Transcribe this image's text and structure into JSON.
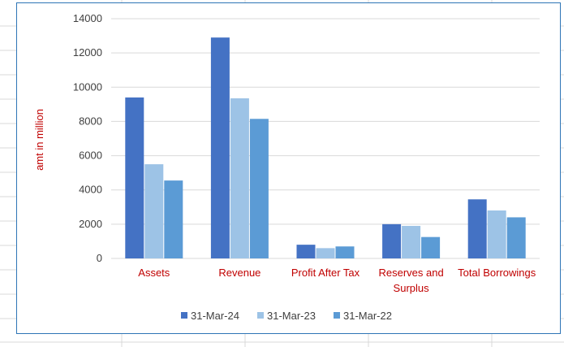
{
  "chart_data": {
    "type": "bar",
    "categories": [
      [
        "Assets"
      ],
      [
        "Revenue"
      ],
      [
        "Profit After Tax"
      ],
      [
        "Reserves and",
        "Surplus"
      ],
      [
        "Total Borrowings"
      ]
    ],
    "series": [
      {
        "name": "31-Mar-24",
        "color": "#4472c4",
        "values": [
          9400,
          12900,
          800,
          2000,
          3450
        ]
      },
      {
        "name": "31-Mar-23",
        "color": "#9dc3e6",
        "values": [
          5500,
          9350,
          600,
          1900,
          2800
        ]
      },
      {
        "name": "31-Mar-22",
        "color": "#5b9bd5",
        "values": [
          4550,
          8150,
          700,
          1250,
          2400
        ]
      }
    ],
    "title": "",
    "xlabel": "",
    "ylabel": "amt in million",
    "ylim": [
      0,
      14000
    ],
    "yticks": [
      0,
      2000,
      4000,
      6000,
      8000,
      10000,
      12000,
      14000
    ],
    "grid": true,
    "legend": "bottom",
    "colors": {
      "category_label": "#c00000",
      "ylabel": "#c00000",
      "tick_label": "#404040",
      "gridline": "#d9d9d9",
      "frame_border": "#2e75b6"
    }
  }
}
